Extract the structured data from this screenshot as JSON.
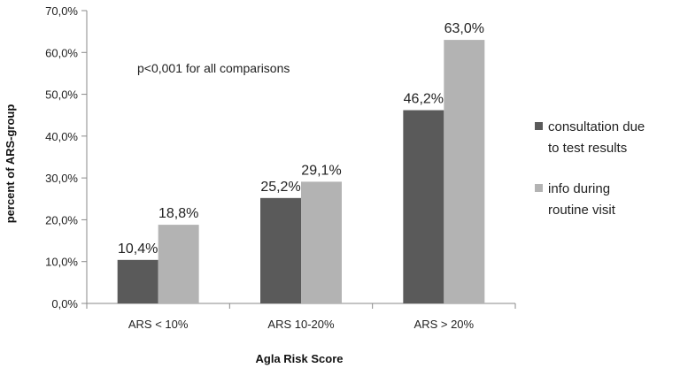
{
  "chart_data": {
    "type": "bar",
    "title": "",
    "xlabel": "Agla Risk  Score",
    "ylabel": "percent of ARS-group",
    "ylim": [
      0,
      70
    ],
    "yticks": [
      "0,0%",
      "10,0%",
      "20,0%",
      "30,0%",
      "40,0%",
      "50,0%",
      "60,0%",
      "70,0%"
    ],
    "categories": [
      "ARS < 10%",
      "ARS 10-20%",
      "ARS > 20%"
    ],
    "series": [
      {
        "name": "consultation due to test results",
        "legend_lines": [
          "consultation due",
          "to test results"
        ],
        "color": "#5a5a5a",
        "values": [
          10.4,
          25.2,
          46.2
        ],
        "labels": [
          "10,4%",
          "25,2%",
          "46,2%"
        ]
      },
      {
        "name": "info during routine visit",
        "legend_lines": [
          "info during",
          "routine visit"
        ],
        "color": "#b3b3b3",
        "values": [
          18.8,
          29.1,
          63.0
        ],
        "labels": [
          "18,8%",
          "29,1%",
          "63,0%"
        ]
      }
    ],
    "annotation": "p<0,001 for all comparisons",
    "grid": false,
    "legend_position": "right"
  }
}
